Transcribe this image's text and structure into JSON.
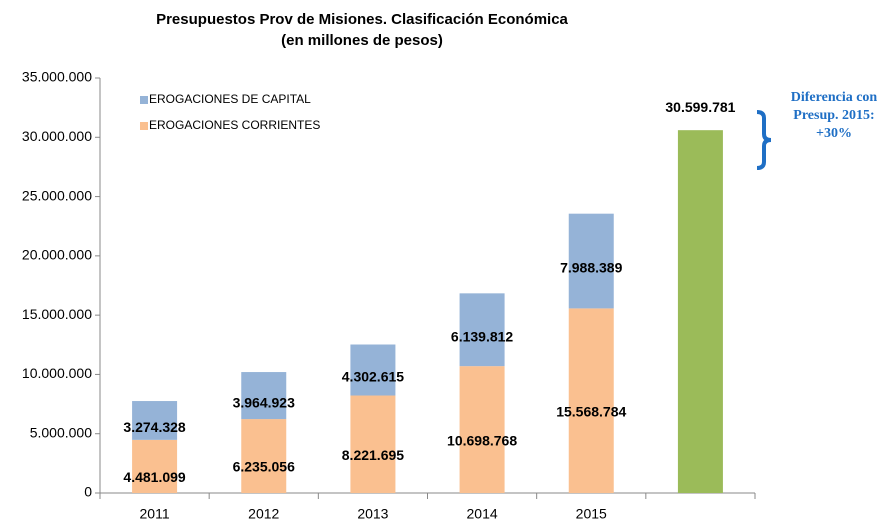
{
  "chart_data": {
    "type": "stacked_bar",
    "title": "Presupuestos  Prov de Misiones. Clasificación  Económica",
    "subtitle": "(en millones de pesos)",
    "categories": [
      "2011",
      "2012",
      "2013",
      "2014",
      "2015",
      null
    ],
    "series": [
      {
        "name": "EROGACIONES CORRIENTES",
        "color": "#fac090",
        "values": [
          4481099,
          6235056,
          8221695,
          10698768,
          15568784,
          null
        ],
        "value_labels": [
          "4.481.099",
          "6.235.056",
          "8.221.695",
          "10.698.768",
          "15.568.784",
          null
        ]
      },
      {
        "name": "EROGACIONES DE CAPITAL",
        "color": "#95b3d7",
        "values": [
          3274328,
          3964923,
          4302615,
          6139812,
          7988389,
          null
        ],
        "value_labels": [
          "3.274.328",
          "3.964.923",
          "4.302.615",
          "6.139.812",
          "7.988.389",
          null
        ]
      },
      {
        "color": "#9bbb59",
        "values": [
          null,
          null,
          null,
          null,
          null,
          30599781
        ],
        "value_labels": [
          null,
          null,
          null,
          null,
          null,
          "30.599.781"
        ]
      }
    ],
    "ylim": [
      0,
      35000000
    ],
    "yticks": [
      0,
      {
        "value": 5000000,
        "label": "5.000.000"
      },
      {
        "value": 10000000,
        "label": "10.000.000"
      },
      {
        "value": 15000000,
        "label": "15.000.000"
      },
      {
        "value": 20000000,
        "label": "20.000.000"
      },
      {
        "value": 25000000,
        "label": "25.000.000"
      },
      {
        "value": 30000000,
        "label": "30.000.000"
      },
      {
        "value": 35000000,
        "label": "35.000.000"
      }
    ],
    "grid": false,
    "legend": "upper left",
    "annotation": [
      "Diferencia con",
      "Presup. 2015:",
      "+30%"
    ]
  }
}
